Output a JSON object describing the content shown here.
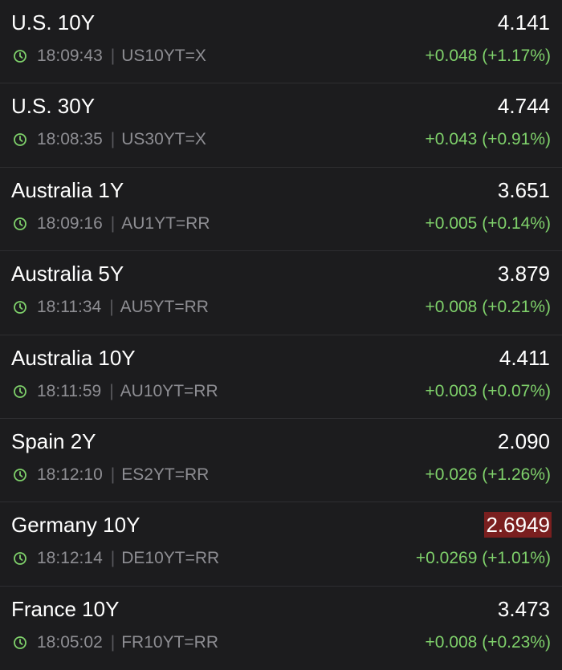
{
  "colors": {
    "background": "#1c1c1e",
    "positive": "#7fd16b",
    "muted": "#8e8e93",
    "flash_negative_bg": "#7a1f1f"
  },
  "icons": {
    "time": "clock-icon"
  },
  "quotes": [
    {
      "name": "U.S. 10Y",
      "price": "4.141",
      "time": "18:09:43",
      "symbol": "US10YT=X",
      "change": "+0.048 (+1.17%)",
      "flash": false
    },
    {
      "name": "U.S. 30Y",
      "price": "4.744",
      "time": "18:08:35",
      "symbol": "US30YT=X",
      "change": "+0.043 (+0.91%)",
      "flash": false
    },
    {
      "name": "Australia 1Y",
      "price": "3.651",
      "time": "18:09:16",
      "symbol": "AU1YT=RR",
      "change": "+0.005 (+0.14%)",
      "flash": false
    },
    {
      "name": "Australia 5Y",
      "price": "3.879",
      "time": "18:11:34",
      "symbol": "AU5YT=RR",
      "change": "+0.008 (+0.21%)",
      "flash": false
    },
    {
      "name": "Australia 10Y",
      "price": "4.411",
      "time": "18:11:59",
      "symbol": "AU10YT=RR",
      "change": "+0.003 (+0.07%)",
      "flash": false
    },
    {
      "name": "Spain 2Y",
      "price": "2.090",
      "time": "18:12:10",
      "symbol": "ES2YT=RR",
      "change": "+0.026 (+1.26%)",
      "flash": false
    },
    {
      "name": "Germany 10Y",
      "price": "2.6949",
      "time": "18:12:14",
      "symbol": "DE10YT=RR",
      "change": "+0.0269 (+1.01%)",
      "flash": true
    },
    {
      "name": "France 10Y",
      "price": "3.473",
      "time": "18:05:02",
      "symbol": "FR10YT=RR",
      "change": "+0.008 (+0.23%)",
      "flash": false
    }
  ]
}
